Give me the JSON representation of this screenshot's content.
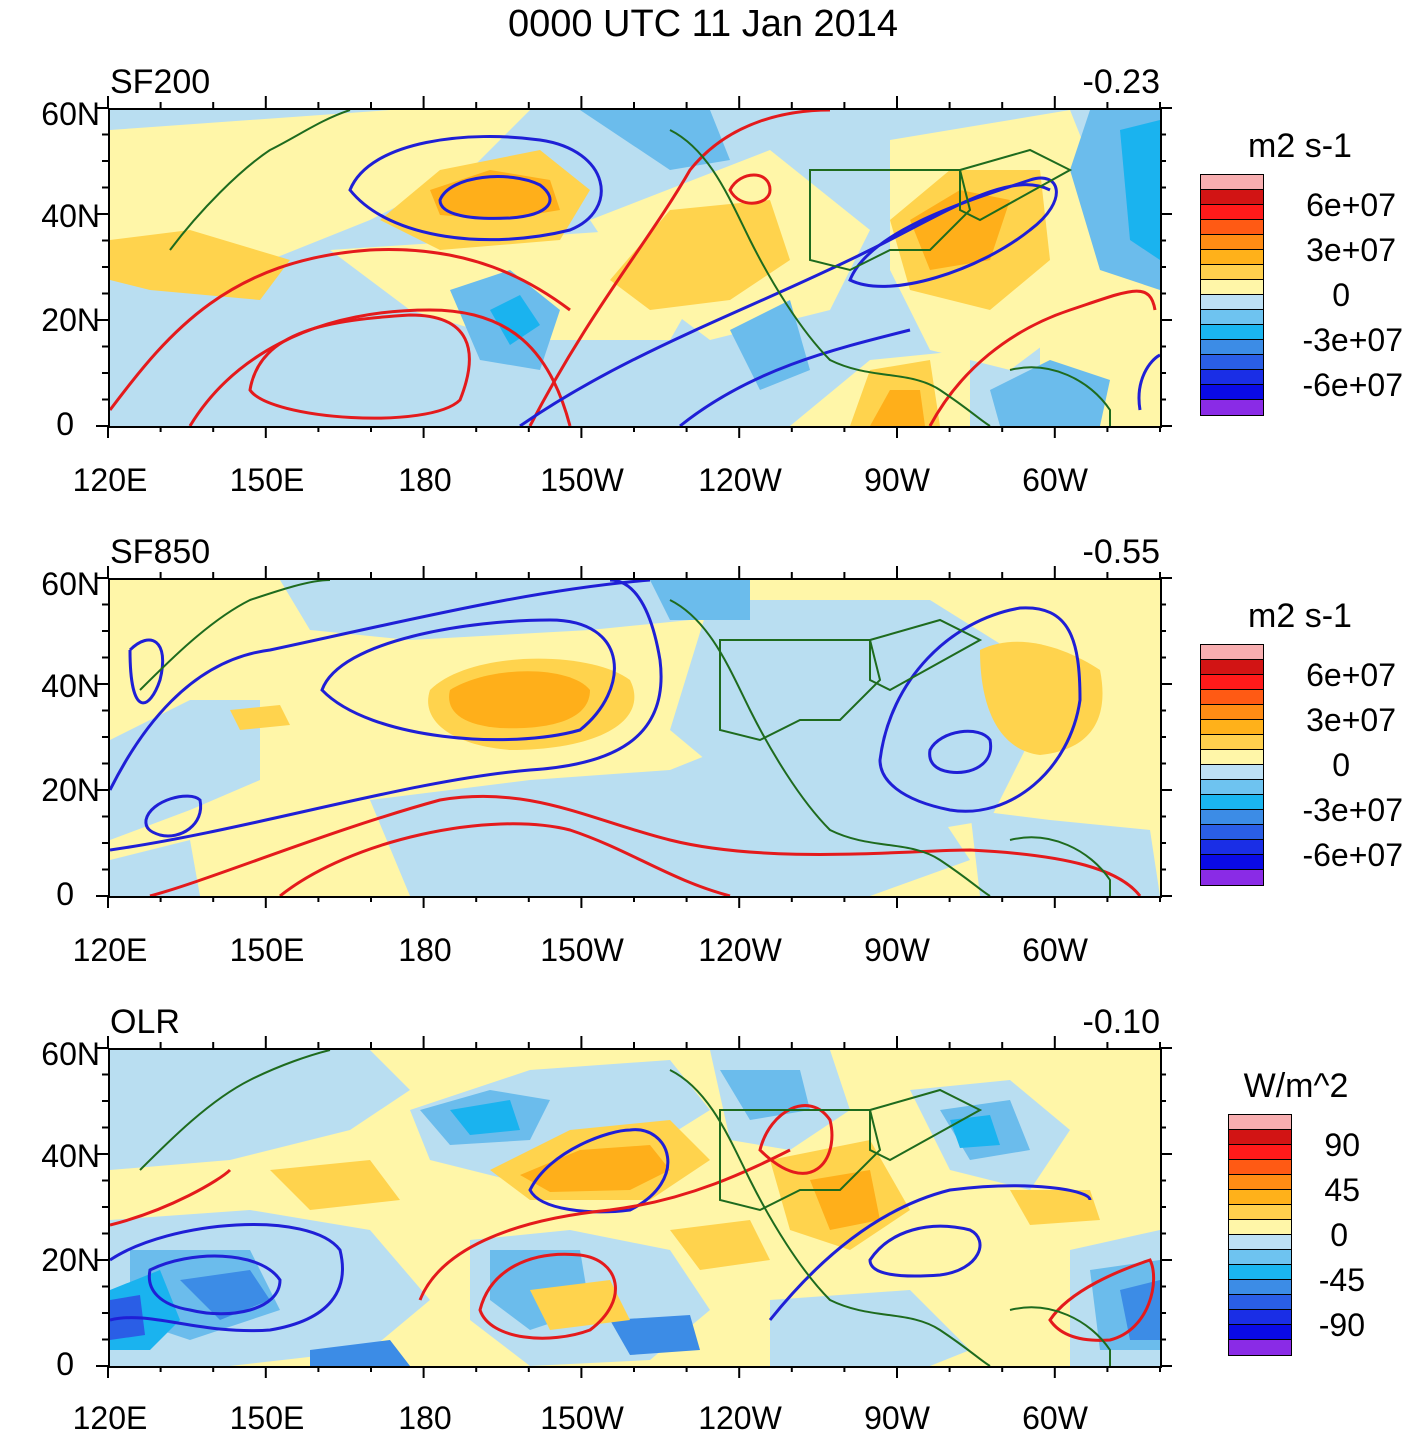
{
  "title": "0000 UTC 11 Jan 2014",
  "colors": {
    "red_contour": "#e41a1c",
    "blue_contour": "#1f1fd6",
    "coast": "#1e6b1e",
    "light_blue": "#b9def1",
    "light_yellow": "#fff6a8",
    "mid_blue": "#6bbcec",
    "cyan": "#1ab3ef",
    "orange_light": "#ffd34d",
    "orange": "#ffaf1a"
  },
  "x_labels": [
    "120E",
    "150E",
    "180",
    "150W",
    "120W",
    "90W",
    "60W"
  ],
  "y_labels": [
    "60N",
    "40N",
    "20N",
    "0"
  ],
  "panels": [
    {
      "label": "SF200",
      "value": "-0.23",
      "units": "m2 s-1",
      "colorbar_labels": [
        "6e+07",
        "3e+07",
        "0",
        "-3e+07",
        "-6e+07"
      ],
      "colorbar_colors": [
        "#f8aeb0",
        "#d21414",
        "#ff1a1a",
        "#ff5a14",
        "#ff8c14",
        "#ffb11a",
        "#ffd04d",
        "#fff6a8",
        "#bde0f5",
        "#6ec3f0",
        "#1ab5f0",
        "#3c8ce6",
        "#2a5ee6",
        "#1a2ee6",
        "#0a0ae6",
        "#8a2be6"
      ]
    },
    {
      "label": "SF850",
      "value": "-0.55",
      "units": "m2 s-1",
      "colorbar_labels": [
        "6e+07",
        "3e+07",
        "0",
        "-3e+07",
        "-6e+07"
      ],
      "colorbar_colors": [
        "#f8aeb0",
        "#d21414",
        "#ff1a1a",
        "#ff5a14",
        "#ff8c14",
        "#ffb11a",
        "#ffd04d",
        "#fff6a8",
        "#bde0f5",
        "#6ec3f0",
        "#1ab5f0",
        "#3c8ce6",
        "#2a5ee6",
        "#1a2ee6",
        "#0a0ae6",
        "#8a2be6"
      ]
    },
    {
      "label": "OLR",
      "value": "-0.10",
      "units": "W/m^2",
      "colorbar_labels": [
        "90",
        "45",
        "0",
        "-45",
        "-90"
      ],
      "colorbar_colors": [
        "#f8aeb0",
        "#d21414",
        "#ff1a1a",
        "#ff5a14",
        "#ff8c14",
        "#ffb11a",
        "#ffd04d",
        "#fff6a8",
        "#bde0f5",
        "#6ec3f0",
        "#1ab5f0",
        "#3c8ce6",
        "#2a5ee6",
        "#1a2ee6",
        "#0a0ae6",
        "#8a2be6"
      ]
    }
  ]
}
